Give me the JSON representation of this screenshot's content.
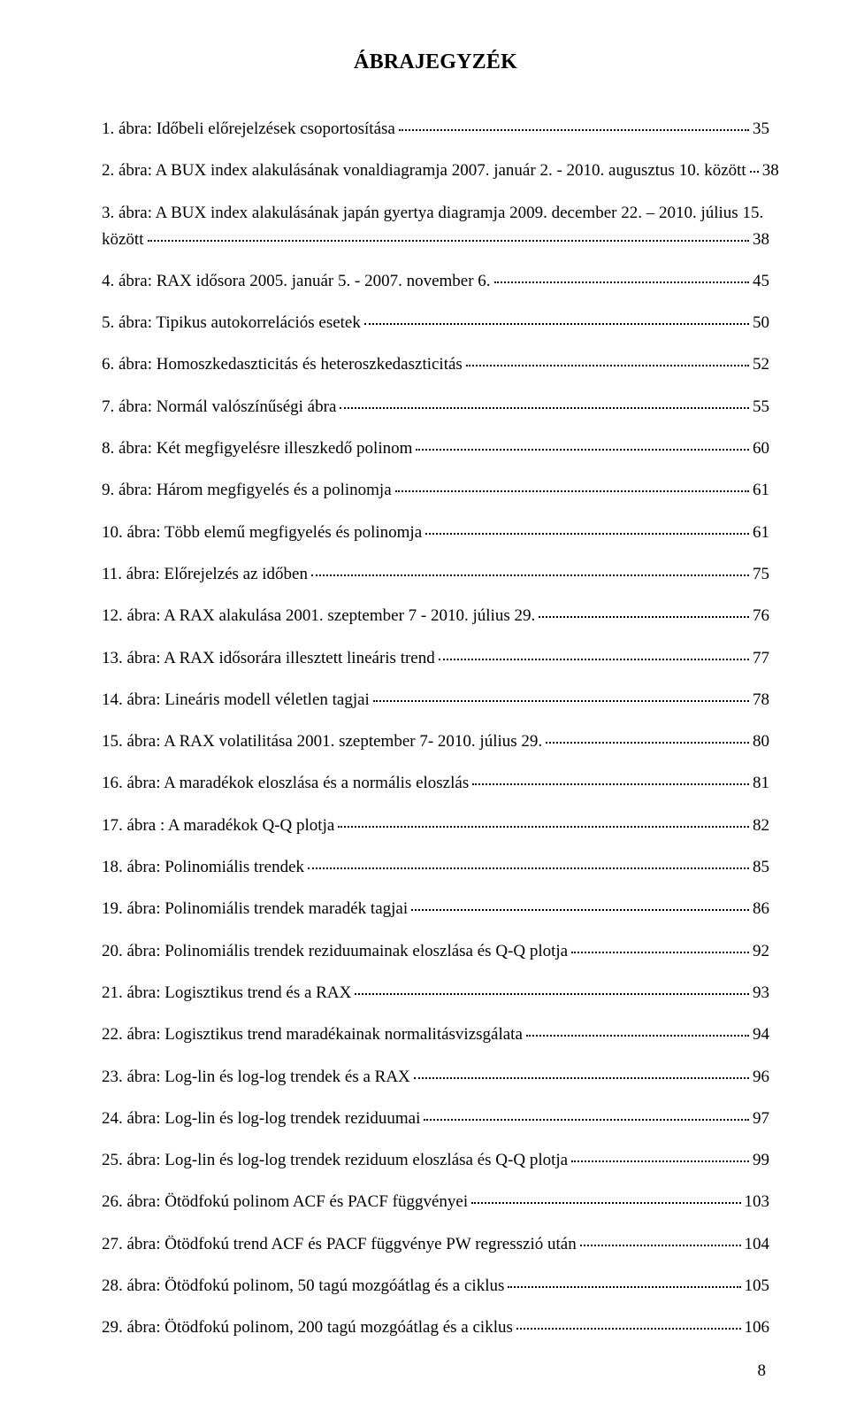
{
  "title": "ÁBRAJEGYZÉK",
  "page_number": "8",
  "text_color": "#000000",
  "background_color": "#ffffff",
  "dot_leader_color": "#000000",
  "font_family": "Times New Roman",
  "title_fontsize": 24,
  "body_fontsize": 19,
  "entries": [
    {
      "label": "1. ábra: Időbeli előrejelzések csoportosítása",
      "page": "35"
    },
    {
      "label": "2. ábra: A BUX index alakulásának vonaldiagramja 2007. január 2. - 2010. augusztus 10. között",
      "page": "38"
    },
    {
      "label": "3. ábra: A BUX index alakulásának japán gyertya diagramja 2009. december 22. – 2010. július 15. között",
      "page": "38"
    },
    {
      "label": "4. ábra: RAX idősora 2005. január 5. - 2007. november 6.",
      "page": "45"
    },
    {
      "label": "5. ábra: Tipikus autokorrelációs esetek",
      "page": "50"
    },
    {
      "label": "6. ábra: Homoszkedaszticitás és heteroszkedaszticitás",
      "page": "52"
    },
    {
      "label": "7. ábra: Normál valószínűségi ábra",
      "page": "55"
    },
    {
      "label": "8. ábra: Két megfigyelésre illeszkedő polinom",
      "page": "60"
    },
    {
      "label": "9. ábra: Három megfigyelés és a polinomja",
      "page": "61"
    },
    {
      "label": "10. ábra: Több elemű megfigyelés és polinomja",
      "page": "61"
    },
    {
      "label": "11. ábra: Előrejelzés az időben",
      "page": "75"
    },
    {
      "label": "12. ábra: A RAX alakulása 2001. szeptember 7 - 2010. július 29.",
      "page": "76"
    },
    {
      "label": "13. ábra: A RAX idősorára illesztett lineáris trend",
      "page": "77"
    },
    {
      "label": "14. ábra: Lineáris modell véletlen tagjai",
      "page": "78"
    },
    {
      "label": "15. ábra: A RAX volatilitása 2001. szeptember 7- 2010. július 29.",
      "page": "80"
    },
    {
      "label": "16. ábra: A maradékok eloszlása és a normális eloszlás",
      "page": "81"
    },
    {
      "label": "17. ábra : A maradékok Q-Q plotja",
      "page": "82"
    },
    {
      "label": "18. ábra: Polinomiális trendek",
      "page": "85"
    },
    {
      "label": "19. ábra: Polinomiális trendek maradék tagjai",
      "page": "86"
    },
    {
      "label": "20. ábra: Polinomiális trendek reziduumainak eloszlása és Q-Q plotja",
      "page": "92"
    },
    {
      "label": "21. ábra: Logisztikus trend és a RAX",
      "page": "93"
    },
    {
      "label": "22. ábra: Logisztikus trend maradékainak normalitásvizsgálata",
      "page": "94"
    },
    {
      "label": "23. ábra: Log-lin és log-log trendek és a RAX",
      "page": "96"
    },
    {
      "label": "24. ábra: Log-lin és log-log trendek reziduumai",
      "page": "97"
    },
    {
      "label": "25. ábra: Log-lin és log-log trendek reziduum eloszlása és Q-Q plotja",
      "page": "99"
    },
    {
      "label": "26. ábra: Ötödfokú polinom ACF és PACF függvényei",
      "page": "103"
    },
    {
      "label": "27. ábra: Ötödfokú trend ACF és PACF függvénye PW regresszió után",
      "page": "104"
    },
    {
      "label": "28. ábra: Ötödfokú polinom, 50 tagú mozgóátlag és a ciklus",
      "page": "105"
    },
    {
      "label": "29. ábra: Ötödfokú polinom, 200 tagú mozgóátlag és a ciklus",
      "page": "106"
    }
  ]
}
